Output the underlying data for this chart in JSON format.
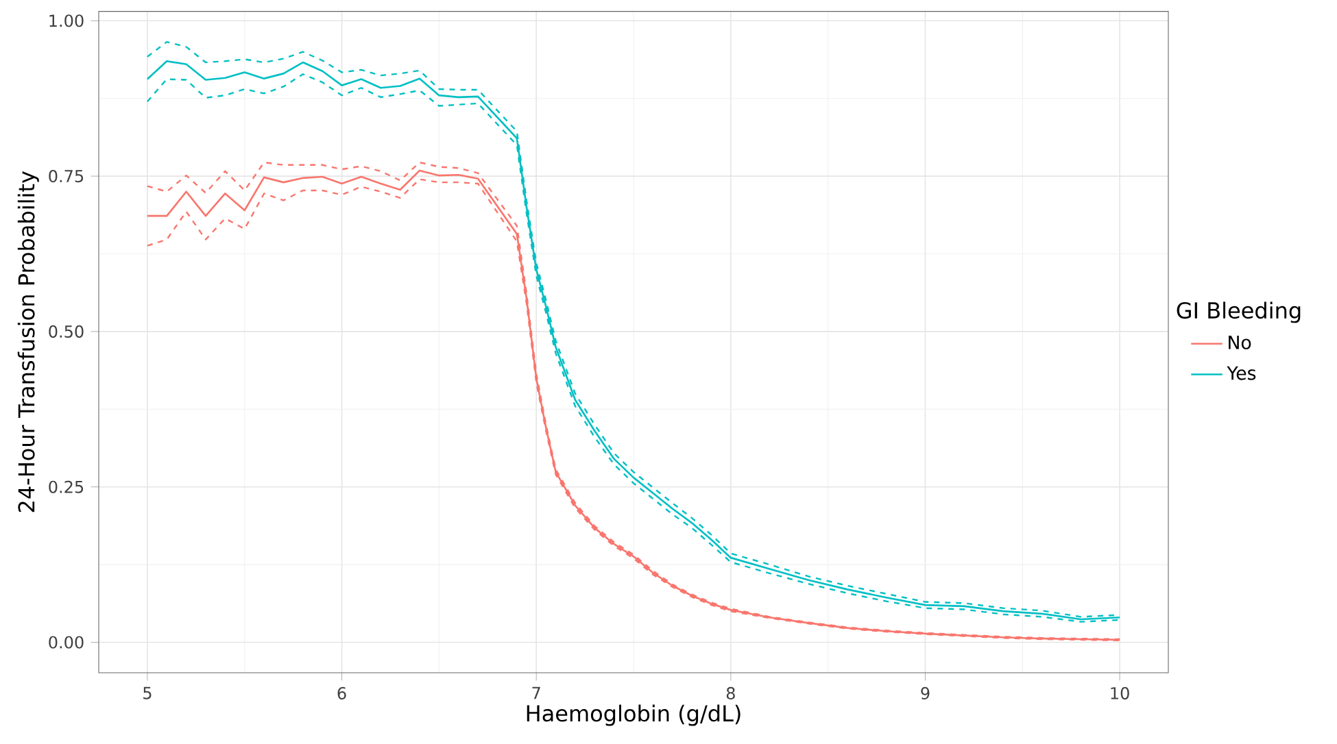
{
  "chart_data": {
    "type": "line",
    "xlabel": "Haemoglobin (g/dL)",
    "ylabel": "24-Hour Transfusion Probability",
    "legend_title": "GI Bleeding",
    "legend": "right",
    "grid": true,
    "line_style": "solid",
    "xlim": [
      4.75,
      10.25
    ],
    "ylim": [
      -0.049,
      1.015
    ],
    "xticks": [
      5,
      6,
      7,
      8,
      9,
      10
    ],
    "yticks": [
      {
        "value": 0,
        "label": "0.00"
      },
      {
        "value": 0.25,
        "label": "0.25"
      },
      {
        "value": 0.5,
        "label": "0.50"
      },
      {
        "value": 0.75,
        "label": "0.75"
      },
      {
        "value": 1,
        "label": "1.00"
      }
    ],
    "x": [
      5,
      5.1,
      5.2,
      5.3,
      5.4,
      5.5,
      5.6,
      5.7,
      5.8,
      5.9,
      6.0,
      6.1,
      6.2,
      6.3,
      6.4,
      6.5,
      6.6,
      6.7,
      6.9,
      6.95,
      7.0,
      7.05,
      7.1,
      7.2,
      7.3,
      7.4,
      7.5,
      7.6,
      7.7,
      7.8,
      7.9,
      8.0,
      8.2,
      8.4,
      8.6,
      8.8,
      9.0,
      9.2,
      9.4,
      9.6,
      9.8,
      10.0
    ],
    "series": [
      {
        "name": "No",
        "color": "#f8766d",
        "values": [
          0.686,
          0.686,
          0.725,
          0.686,
          0.722,
          0.695,
          0.748,
          0.74,
          0.747,
          0.749,
          0.738,
          0.749,
          0.738,
          0.728,
          0.759,
          0.751,
          0.752,
          0.746,
          0.657,
          0.553,
          0.425,
          0.345,
          0.274,
          0.22,
          0.184,
          0.158,
          0.138,
          0.112,
          0.091,
          0.075,
          0.062,
          0.052,
          0.04,
          0.031,
          0.023,
          0.018,
          0.014,
          0.011,
          0.008,
          0.006,
          0.005,
          0.004
        ]
      },
      {
        "color": "#f8766d",
        "line_style": "dashed",
        "values": [
          0.638,
          0.648,
          0.693,
          0.648,
          0.682,
          0.665,
          0.722,
          0.711,
          0.727,
          0.727,
          0.72,
          0.733,
          0.725,
          0.715,
          0.745,
          0.74,
          0.74,
          0.738,
          0.645,
          0.545,
          0.418,
          0.34,
          0.27,
          0.216,
          0.181,
          0.155,
          0.135,
          0.109,
          0.089,
          0.073,
          0.06,
          0.05,
          0.039,
          0.03,
          0.022,
          0.017,
          0.013,
          0.01,
          0.007,
          0.005,
          0.004,
          0.003
        ]
      },
      {
        "color": "#f8766d",
        "line_style": "dashed",
        "values": [
          0.734,
          0.725,
          0.751,
          0.723,
          0.758,
          0.727,
          0.772,
          0.768,
          0.768,
          0.768,
          0.761,
          0.766,
          0.758,
          0.743,
          0.772,
          0.765,
          0.763,
          0.755,
          0.67,
          0.561,
          0.432,
          0.35,
          0.278,
          0.224,
          0.187,
          0.161,
          0.141,
          0.115,
          0.093,
          0.077,
          0.064,
          0.054,
          0.041,
          0.032,
          0.024,
          0.019,
          0.015,
          0.012,
          0.009,
          0.007,
          0.006,
          0.005
        ]
      },
      {
        "name": "Yes",
        "color": "#00bfc4",
        "values": [
          0.906,
          0.935,
          0.93,
          0.905,
          0.908,
          0.917,
          0.907,
          0.915,
          0.933,
          0.919,
          0.896,
          0.906,
          0.892,
          0.895,
          0.907,
          0.88,
          0.877,
          0.878,
          0.811,
          0.7,
          0.6,
          0.54,
          0.475,
          0.39,
          0.34,
          0.295,
          0.265,
          0.24,
          0.215,
          0.192,
          0.165,
          0.136,
          0.118,
          0.1,
          0.085,
          0.072,
          0.06,
          0.058,
          0.05,
          0.046,
          0.037,
          0.04
        ]
      },
      {
        "color": "#00bfc4",
        "line_style": "dashed",
        "values": [
          0.87,
          0.906,
          0.905,
          0.876,
          0.88,
          0.89,
          0.883,
          0.894,
          0.914,
          0.901,
          0.88,
          0.892,
          0.877,
          0.882,
          0.888,
          0.863,
          0.865,
          0.867,
          0.8,
          0.69,
          0.59,
          0.53,
          0.465,
          0.38,
          0.33,
          0.286,
          0.256,
          0.231,
          0.206,
          0.184,
          0.157,
          0.129,
          0.111,
          0.094,
          0.079,
          0.066,
          0.055,
          0.053,
          0.045,
          0.041,
          0.033,
          0.036
        ]
      },
      {
        "color": "#00bfc4",
        "line_style": "dashed",
        "values": [
          0.942,
          0.966,
          0.958,
          0.933,
          0.935,
          0.938,
          0.933,
          0.939,
          0.95,
          0.936,
          0.917,
          0.921,
          0.912,
          0.915,
          0.92,
          0.89,
          0.889,
          0.889,
          0.822,
          0.71,
          0.61,
          0.55,
          0.485,
          0.4,
          0.35,
          0.304,
          0.274,
          0.249,
          0.224,
          0.2,
          0.173,
          0.143,
          0.125,
          0.106,
          0.091,
          0.078,
          0.065,
          0.063,
          0.055,
          0.051,
          0.041,
          0.044
        ]
      }
    ]
  }
}
